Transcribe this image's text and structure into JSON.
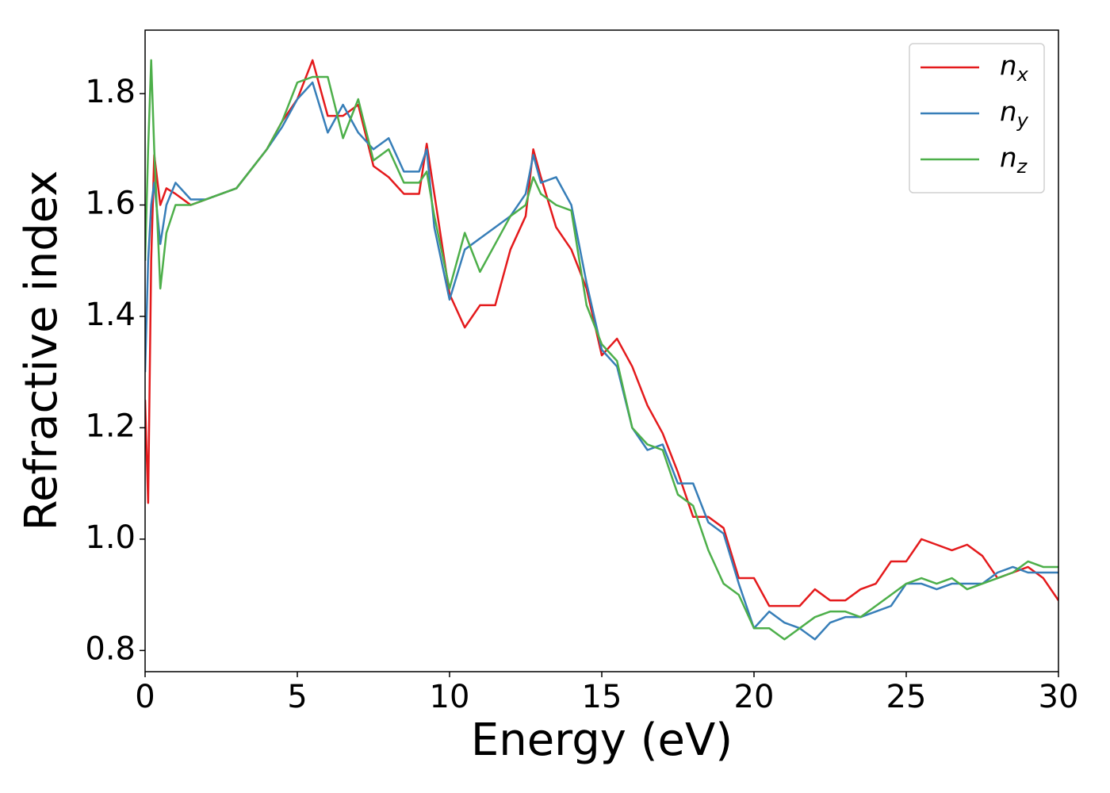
{
  "chart_data": {
    "type": "line",
    "x_label": "Energy (eV)",
    "y_label": "Refractive index",
    "x": [
      0,
      0.1,
      0.2,
      0.3,
      0.5,
      0.7,
      1,
      1.5,
      2,
      3,
      4,
      4.5,
      5,
      5.5,
      6,
      6.5,
      7,
      7.5,
      8,
      8.5,
      9,
      9.25,
      9.5,
      10,
      10.5,
      11,
      11.5,
      12,
      12.5,
      12.75,
      13,
      13.5,
      14,
      14.5,
      15,
      15.5,
      16,
      16.5,
      17,
      17.5,
      18,
      18.5,
      19,
      19.5,
      20,
      20.5,
      21,
      21.5,
      22,
      22.5,
      23,
      23.5,
      24,
      24.5,
      25,
      25.5,
      26,
      26.5,
      27,
      27.5,
      28,
      28.5,
      29,
      29.5,
      30
    ],
    "series": [
      {
        "name": "nx",
        "color": "#e41a1c",
        "values": [
          1.25,
          1.065,
          1.5,
          1.69,
          1.6,
          1.63,
          1.62,
          1.6,
          1.61,
          1.63,
          1.7,
          1.75,
          1.79,
          1.86,
          1.76,
          1.76,
          1.78,
          1.67,
          1.65,
          1.62,
          1.62,
          1.71,
          1.62,
          1.44,
          1.38,
          1.42,
          1.42,
          1.52,
          1.58,
          1.7,
          1.65,
          1.56,
          1.52,
          1.45,
          1.33,
          1.36,
          1.31,
          1.24,
          1.19,
          1.12,
          1.04,
          1.04,
          1.02,
          0.93,
          0.93,
          0.88,
          0.88,
          0.88,
          0.91,
          0.89,
          0.89,
          0.91,
          0.92,
          0.96,
          0.96,
          1.0,
          0.99,
          0.98,
          0.99,
          0.97,
          0.93,
          0.94,
          0.95,
          0.93,
          0.89
        ]
      },
      {
        "name": "ny",
        "color": "#377eb8",
        "values": [
          1.3,
          1.5,
          1.6,
          1.64,
          1.53,
          1.6,
          1.64,
          1.61,
          1.61,
          1.63,
          1.7,
          1.74,
          1.79,
          1.82,
          1.73,
          1.78,
          1.73,
          1.7,
          1.72,
          1.66,
          1.66,
          1.7,
          1.56,
          1.43,
          1.52,
          1.54,
          1.56,
          1.58,
          1.62,
          1.69,
          1.64,
          1.65,
          1.6,
          1.46,
          1.34,
          1.31,
          1.2,
          1.16,
          1.17,
          1.1,
          1.1,
          1.03,
          1.01,
          0.92,
          0.84,
          0.87,
          0.85,
          0.84,
          0.82,
          0.85,
          0.86,
          0.86,
          0.87,
          0.88,
          0.92,
          0.92,
          0.91,
          0.92,
          0.92,
          0.92,
          0.94,
          0.95,
          0.94,
          0.94,
          0.94
        ]
      },
      {
        "name": "nz",
        "color": "#4daf4a",
        "values": [
          1.5,
          1.7,
          1.86,
          1.7,
          1.45,
          1.55,
          1.6,
          1.6,
          1.61,
          1.63,
          1.7,
          1.75,
          1.82,
          1.83,
          1.83,
          1.72,
          1.79,
          1.68,
          1.7,
          1.64,
          1.64,
          1.66,
          1.58,
          1.45,
          1.55,
          1.48,
          1.53,
          1.58,
          1.6,
          1.65,
          1.62,
          1.6,
          1.59,
          1.42,
          1.35,
          1.32,
          1.2,
          1.17,
          1.16,
          1.08,
          1.06,
          0.98,
          0.92,
          0.9,
          0.84,
          0.84,
          0.82,
          0.84,
          0.86,
          0.87,
          0.87,
          0.86,
          0.88,
          0.9,
          0.92,
          0.93,
          0.92,
          0.93,
          0.91,
          0.92,
          0.93,
          0.94,
          0.96,
          0.95,
          0.95
        ]
      }
    ],
    "xlim": [
      0,
      30
    ],
    "xticks": [
      0,
      5,
      10,
      15,
      20,
      25,
      30
    ],
    "ylim": [
      0.762,
      1.914
    ],
    "yticks": [
      0.8,
      {
        "value": 1,
        "label": "1.0"
      },
      1.2,
      1.4,
      1.6,
      1.8
    ],
    "legend": "upper right",
    "grid": false
  }
}
